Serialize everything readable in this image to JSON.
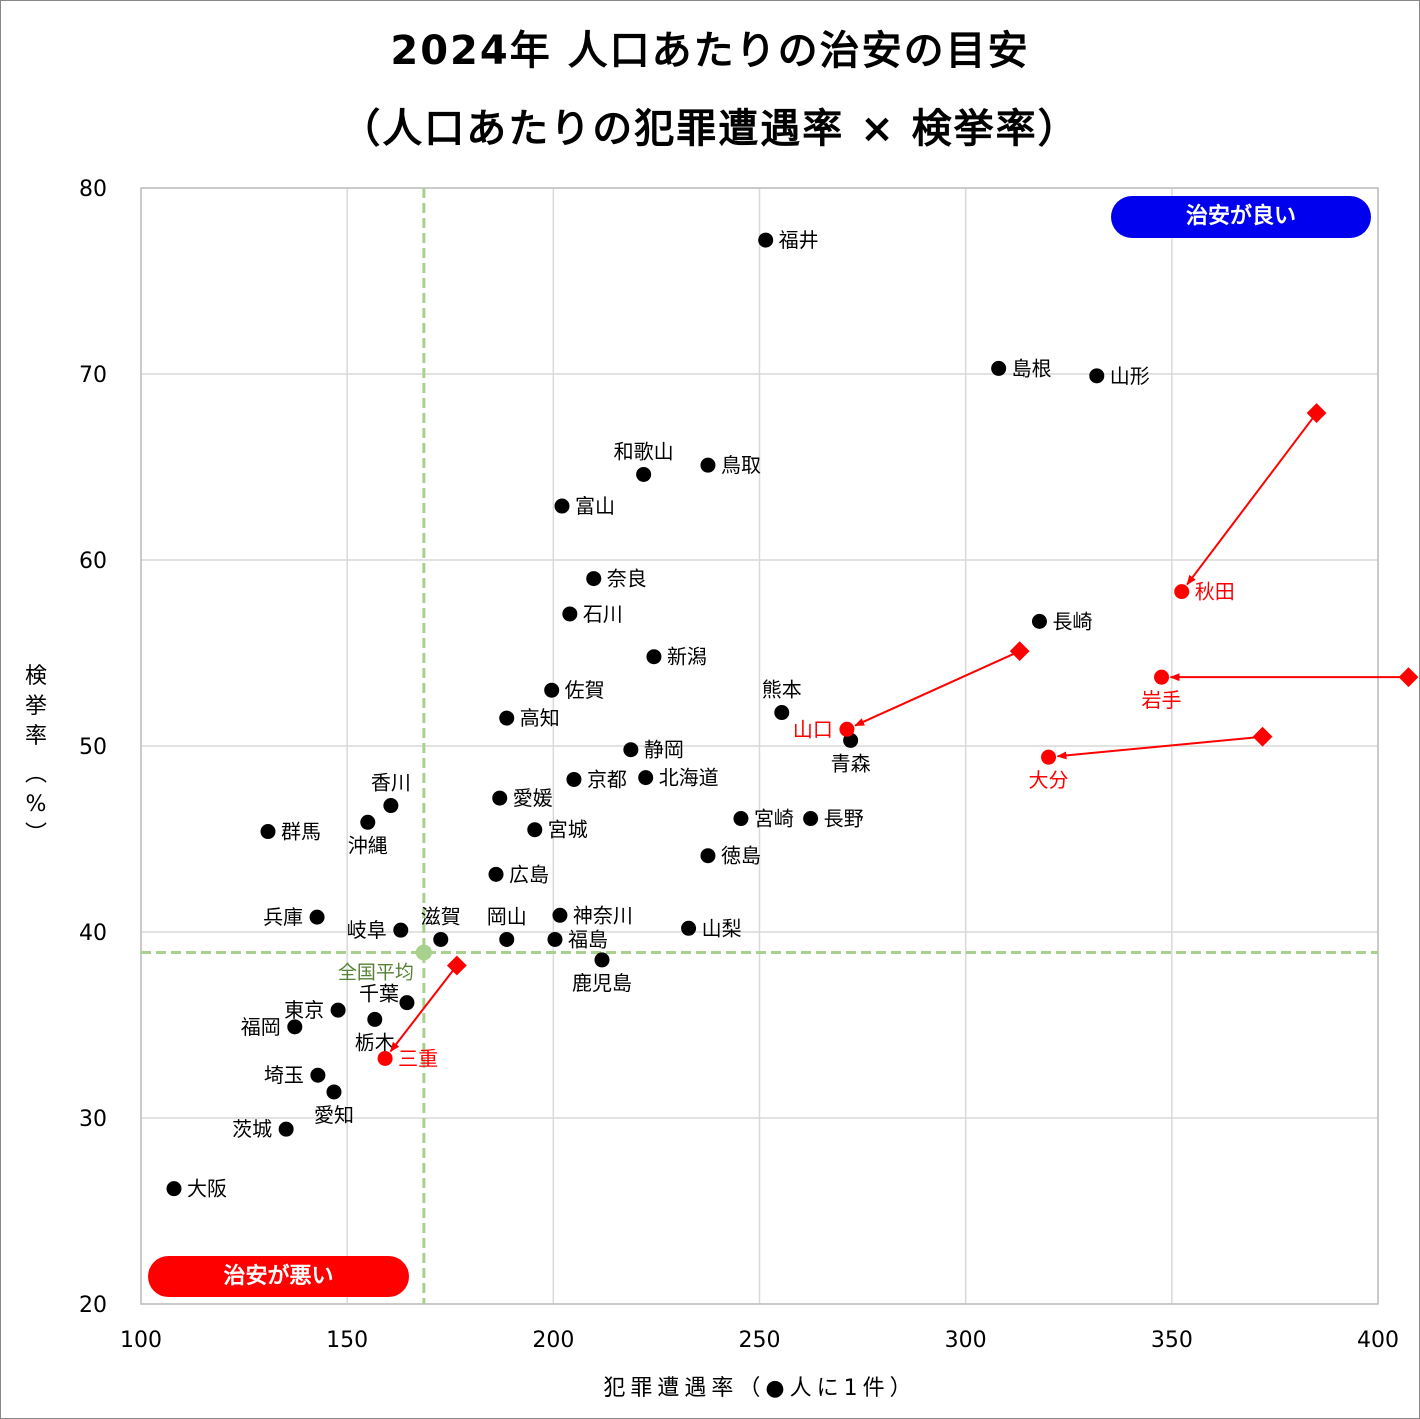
{
  "title_line1": "2024年 人口あたりの治安の目安",
  "title_line2": "（人口あたりの犯罪遭遇率 × 検挙率）",
  "badges": {
    "good": "治安が良い",
    "bad": "治安が悪い"
  },
  "axes": {
    "xlabel": "犯罪遭遇率（●人に1件）",
    "ylabel_chars": [
      "検",
      "挙",
      "率",
      "︵",
      "%",
      "︶"
    ]
  },
  "colors": {
    "point": "#000000",
    "highlight": "#ff0000",
    "average": "#a9d18e",
    "average_label": "#548235",
    "grid": "#d9d9d9",
    "good_badge": "#0000ee",
    "bad_badge": "#ff0000"
  },
  "chart_data": {
    "type": "scatter",
    "title": "2024年 人口あたりの治安の目安（人口あたりの犯罪遭遇率 × 検挙率）",
    "xlabel": "犯罪遭遇率（●人に1件）",
    "ylabel": "検挙率（%）",
    "xlim": [
      100,
      400
    ],
    "ylim": [
      20,
      80
    ],
    "xticks": [
      100,
      150,
      200,
      250,
      300,
      350,
      400
    ],
    "yticks": [
      20,
      30,
      40,
      50,
      60,
      70,
      80
    ],
    "grid": true,
    "average": {
      "label": "全国平均",
      "x": 168.6,
      "y": 38.9
    },
    "points": [
      {
        "name": "福井",
        "x": 251.5,
        "y": 77.2,
        "lp": "r"
      },
      {
        "name": "島根",
        "x": 308.0,
        "y": 70.3,
        "lp": "r"
      },
      {
        "name": "山形",
        "x": 331.8,
        "y": 69.9,
        "lp": "r"
      },
      {
        "name": "和歌山",
        "x": 221.9,
        "y": 64.6,
        "lp": "t"
      },
      {
        "name": "鳥取",
        "x": 237.5,
        "y": 65.1,
        "lp": "r"
      },
      {
        "name": "富山",
        "x": 202.1,
        "y": 62.9,
        "lp": "r"
      },
      {
        "name": "奈良",
        "x": 209.8,
        "y": 59.0,
        "lp": "r"
      },
      {
        "name": "石川",
        "x": 204.0,
        "y": 57.1,
        "lp": "r"
      },
      {
        "name": "新潟",
        "x": 224.4,
        "y": 54.8,
        "lp": "r"
      },
      {
        "name": "長崎",
        "x": 317.9,
        "y": 56.7,
        "lp": "r"
      },
      {
        "name": "佐賀",
        "x": 199.6,
        "y": 53.0,
        "lp": "r"
      },
      {
        "name": "熊本",
        "x": 255.4,
        "y": 51.8,
        "lp": "t"
      },
      {
        "name": "高知",
        "x": 188.7,
        "y": 51.5,
        "lp": "r"
      },
      {
        "name": "青森",
        "x": 272.1,
        "y": 50.3,
        "lp": "b"
      },
      {
        "name": "静岡",
        "x": 218.8,
        "y": 49.8,
        "lp": "r"
      },
      {
        "name": "京都",
        "x": 205.0,
        "y": 48.2,
        "lp": "r"
      },
      {
        "name": "北海道",
        "x": 222.4,
        "y": 48.3,
        "lp": "r"
      },
      {
        "name": "香川",
        "x": 160.6,
        "y": 46.8,
        "lp": "t"
      },
      {
        "name": "愛媛",
        "x": 187.0,
        "y": 47.2,
        "lp": "r"
      },
      {
        "name": "沖縄",
        "x": 155.0,
        "y": 45.9,
        "lp": "b"
      },
      {
        "name": "群馬",
        "x": 130.8,
        "y": 45.4,
        "lp": "r"
      },
      {
        "name": "宮城",
        "x": 195.5,
        "y": 45.5,
        "lp": "r"
      },
      {
        "name": "宮崎",
        "x": 245.5,
        "y": 46.1,
        "lp": "r"
      },
      {
        "name": "長野",
        "x": 262.4,
        "y": 46.1,
        "lp": "r"
      },
      {
        "name": "徳島",
        "x": 237.5,
        "y": 44.1,
        "lp": "r"
      },
      {
        "name": "広島",
        "x": 186.1,
        "y": 43.1,
        "lp": "r"
      },
      {
        "name": "兵庫",
        "x": 142.7,
        "y": 40.8,
        "lp": "l"
      },
      {
        "name": "神奈川",
        "x": 201.6,
        "y": 40.9,
        "lp": "r"
      },
      {
        "name": "山梨",
        "x": 232.8,
        "y": 40.2,
        "lp": "r"
      },
      {
        "name": "岐阜",
        "x": 163.0,
        "y": 40.1,
        "lp": "l"
      },
      {
        "name": "滋賀",
        "x": 172.7,
        "y": 39.6,
        "lp": "t"
      },
      {
        "name": "岡山",
        "x": 188.7,
        "y": 39.6,
        "lp": "t"
      },
      {
        "name": "福島",
        "x": 200.4,
        "y": 39.6,
        "lp": "r"
      },
      {
        "name": "鹿児島",
        "x": 211.8,
        "y": 38.5,
        "lp": "b"
      },
      {
        "name": "千葉",
        "x": 164.5,
        "y": 36.2,
        "lp": "tl"
      },
      {
        "name": "東京",
        "x": 147.8,
        "y": 35.8,
        "lp": "l"
      },
      {
        "name": "栃木",
        "x": 156.7,
        "y": 35.3,
        "lp": "b"
      },
      {
        "name": "福岡",
        "x": 137.3,
        "y": 34.9,
        "lp": "l"
      },
      {
        "name": "埼玉",
        "x": 142.9,
        "y": 32.3,
        "lp": "l"
      },
      {
        "name": "愛知",
        "x": 146.8,
        "y": 31.4,
        "lp": "b"
      },
      {
        "name": "茨城",
        "x": 135.2,
        "y": 29.4,
        "lp": "l"
      },
      {
        "name": "大阪",
        "x": 108.0,
        "y": 26.2,
        "lp": "r"
      }
    ],
    "highlighted": [
      {
        "name": "秋田",
        "x": 352.4,
        "y": 58.3,
        "prev_x": 385.1,
        "prev_y": 67.9,
        "lp": "r"
      },
      {
        "name": "山口",
        "x": 271.2,
        "y": 50.9,
        "prev_x": 313.1,
        "prev_y": 55.1,
        "lp": "l"
      },
      {
        "name": "岩手",
        "x": 347.5,
        "y": 53.7,
        "prev_x": 407.4,
        "prev_y": 53.7,
        "lp": "b"
      },
      {
        "name": "大分",
        "x": 320.1,
        "y": 49.4,
        "prev_x": 372.0,
        "prev_y": 50.5,
        "lp": "b"
      },
      {
        "name": "三重",
        "x": 159.2,
        "y": 33.2,
        "prev_x": 176.6,
        "prev_y": 38.2,
        "lp": "r"
      }
    ]
  }
}
